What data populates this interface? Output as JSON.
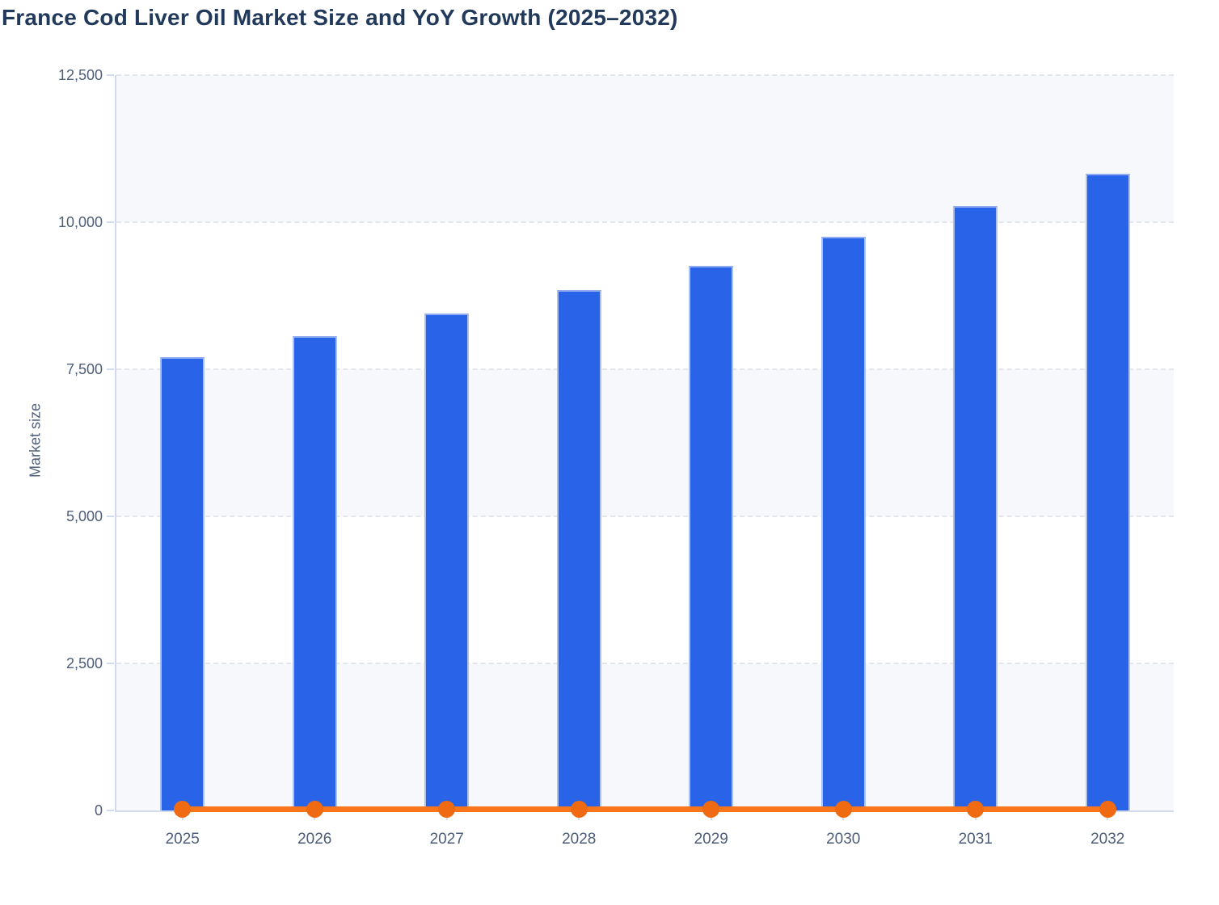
{
  "title": "France Cod Liver Oil Market Size and YoY Growth (2025–2032)",
  "chart_data": {
    "type": "bar",
    "title": "France Cod Liver Oil Market Size and YoY Growth (2025–2032)",
    "xlabel": "",
    "ylabel": "Market size",
    "categories": [
      "2025",
      "2026",
      "2027",
      "2028",
      "2029",
      "2030",
      "2031",
      "2032"
    ],
    "series": [
      {
        "name": "Market size",
        "type": "bar",
        "color": "#2863e8",
        "values": [
          7700,
          8060,
          8450,
          8840,
          9260,
          9750,
          10280,
          10830
        ]
      },
      {
        "name": "YoY Growth",
        "type": "line",
        "color": "#f8751c",
        "marker_color": "#f06a12",
        "values_as_plotted_on_left_axis": [
          0,
          0,
          0,
          0,
          0,
          0,
          0,
          0
        ]
      }
    ],
    "ylim": [
      0,
      12500
    ],
    "ytick_step": 2500,
    "ytick_labels": [
      "0",
      "2,500",
      "5,000",
      "7,500",
      "10,000",
      "12,500"
    ],
    "grid": "horizontal-dashed",
    "legend": "none",
    "plot_band_colors": [
      "#f7f8fb",
      "#ffffff"
    ],
    "axis_color": "#d2daee",
    "gridline_color": "#e3e5ec",
    "tick_label_color": "#4e5d78",
    "title_color": "#21395a"
  }
}
